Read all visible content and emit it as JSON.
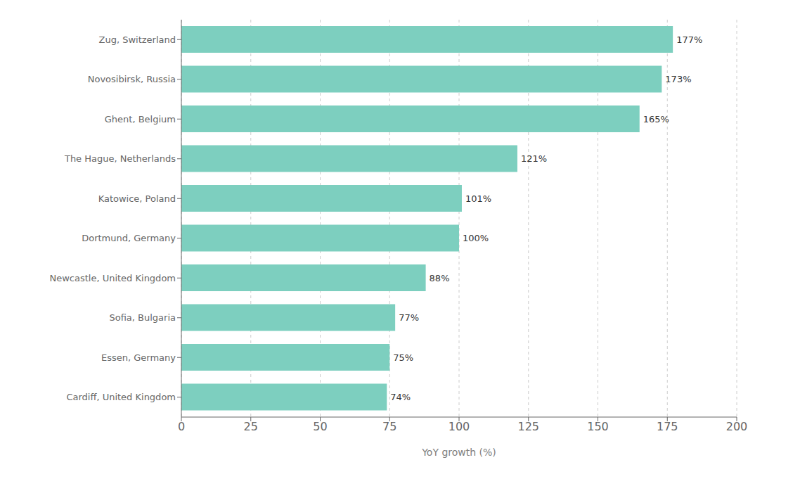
{
  "chart_data": {
    "type": "bar",
    "orientation": "horizontal",
    "categories": [
      "Cardiff, United Kingdom",
      "Essen, Germany",
      "Sofia, Bulgaria",
      "Newcastle, United Kingdom",
      "Dortmund, Germany",
      "Katowice, Poland",
      "The Hague, Netherlands",
      "Ghent, Belgium",
      "Novosibirsk, Russia",
      "Zug, Switzerland"
    ],
    "values": [
      74,
      75,
      77,
      88,
      100,
      101,
      121,
      165,
      173,
      177
    ],
    "value_labels": [
      "74%",
      "75%",
      "77%",
      "88%",
      "100%",
      "101%",
      "121%",
      "165%",
      "173%",
      "177%"
    ],
    "data_labels": true,
    "color": "#7dcfbf",
    "xlabel": "YoY growth (%)",
    "xlim": [
      0,
      200
    ],
    "xticks": [
      0,
      25,
      50,
      75,
      100,
      125,
      150,
      175,
      200
    ],
    "grid": true
  }
}
